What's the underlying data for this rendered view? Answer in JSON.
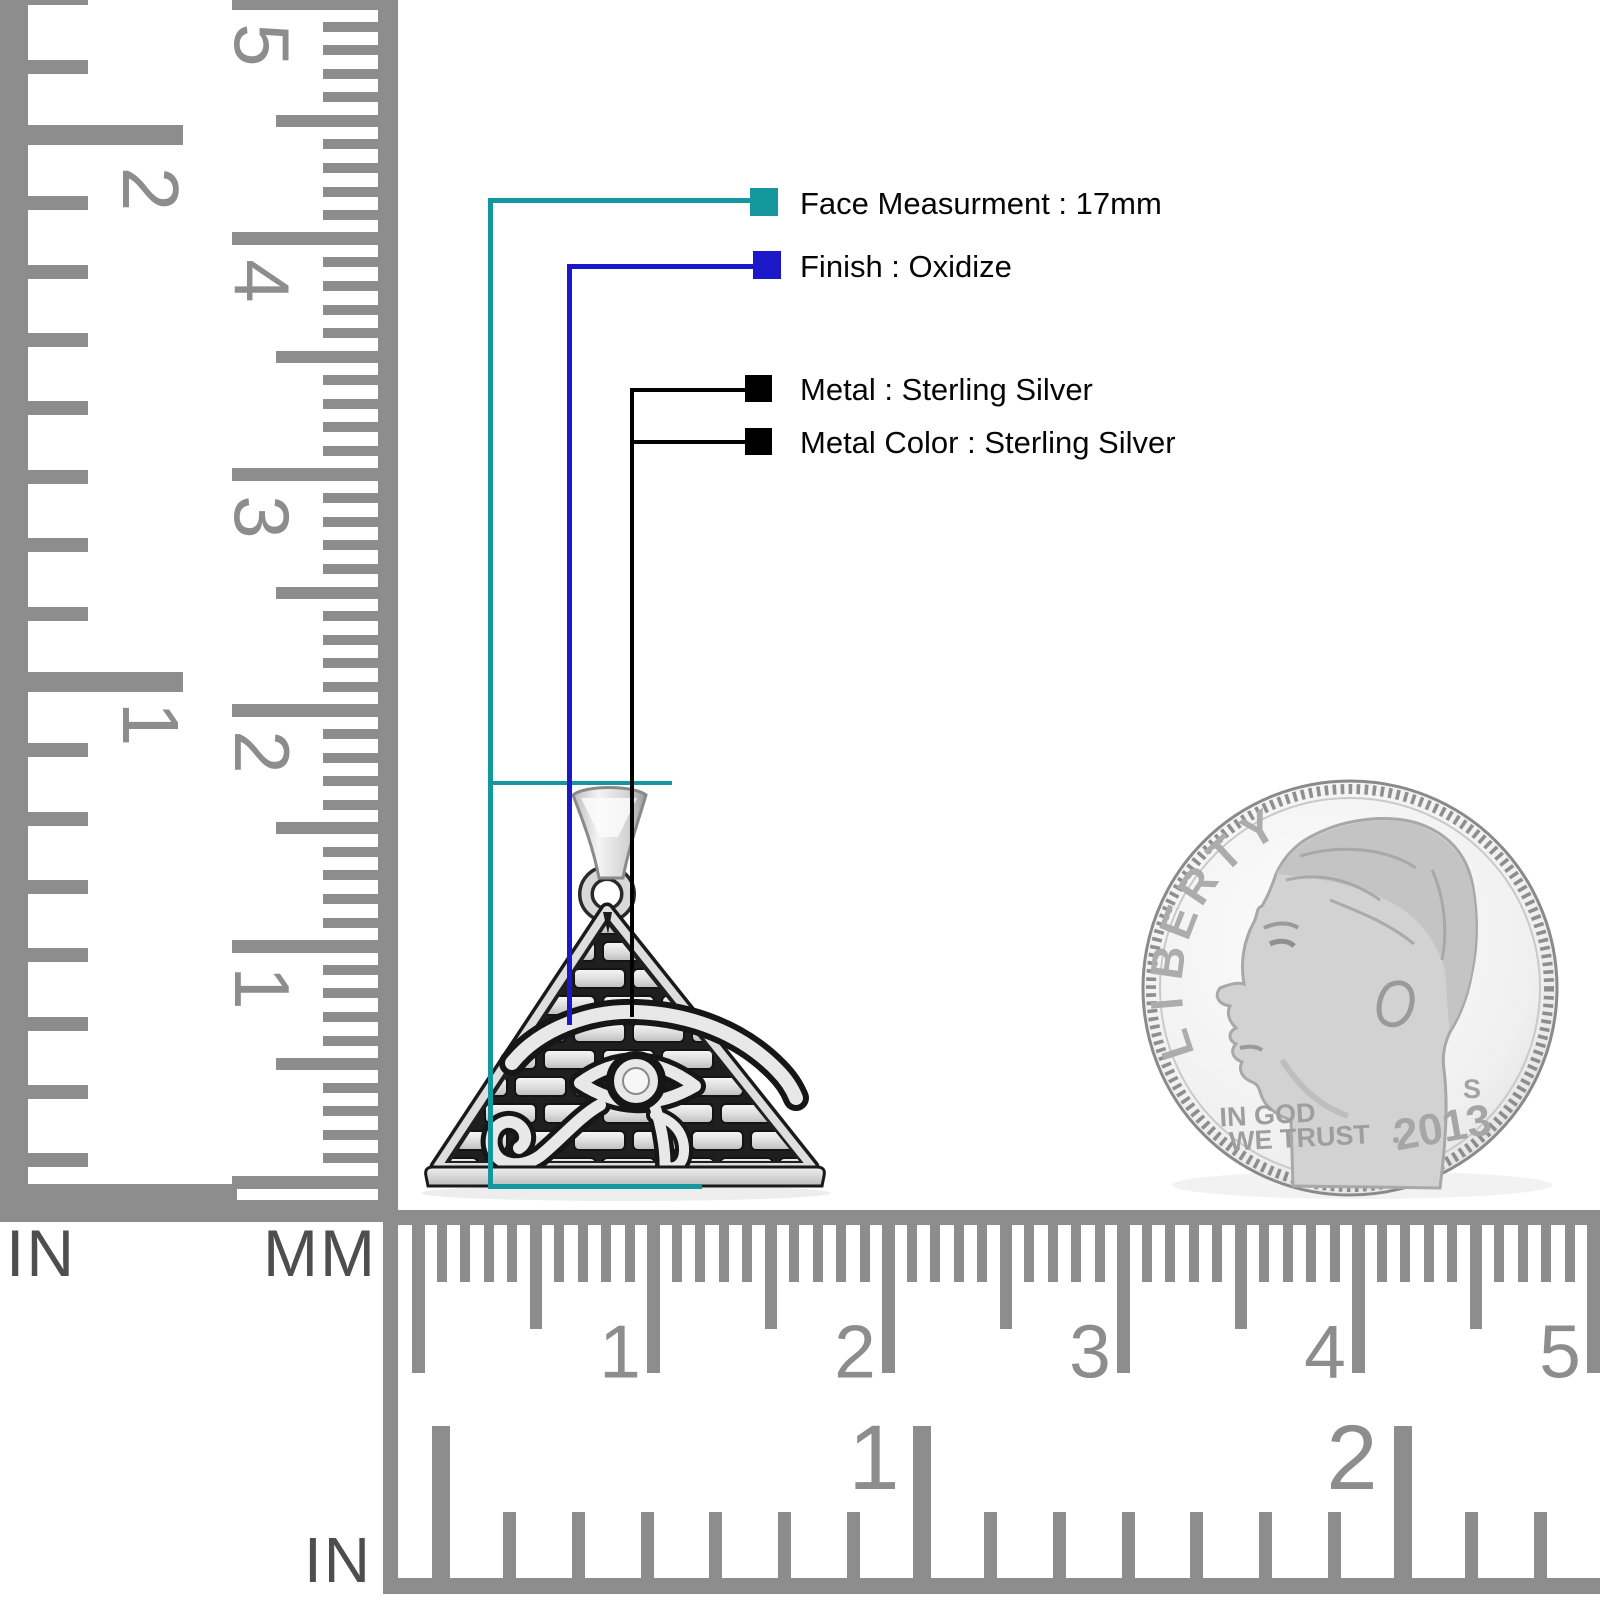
{
  "annotations": {
    "items": [
      {
        "label": "Face Measurment : 17mm",
        "color": "#14989D"
      },
      {
        "label": "Finish : Oxidize",
        "color": "#1A18C9"
      },
      {
        "label": "Metal : Sterling Silver",
        "color": "#000000"
      },
      {
        "label": "Metal Color : Sterling Silver",
        "color": "#000000"
      }
    ]
  },
  "rulers": {
    "tick_color": "#8d8d8d",
    "number_color": "#8d8d8d",
    "unit_label_color": "#4e4e4e",
    "vertical": {
      "left_unit": "IN",
      "right_unit": "MM",
      "inch_numbers": [
        "2",
        "1"
      ],
      "cm_numbers": [
        "5",
        "4",
        "3",
        "2",
        "1"
      ]
    },
    "horizontal": {
      "bottom_unit": "IN",
      "cm_numbers": [
        "1",
        "2",
        "3",
        "4",
        "5"
      ],
      "inch_numbers": [
        "1",
        "2"
      ]
    }
  },
  "coin": {
    "legend": "LIBERTY",
    "motto_line1": "IN GOD",
    "motto_line2": "WE TRUST",
    "year": "2013",
    "mint_mark": "S"
  },
  "pendant_colors": {
    "mortar": "#1f1f1f",
    "silver_light": "#f6f6f6",
    "silver_mid": "#cfcfcf",
    "silver_dark": "#8f8f8f"
  }
}
